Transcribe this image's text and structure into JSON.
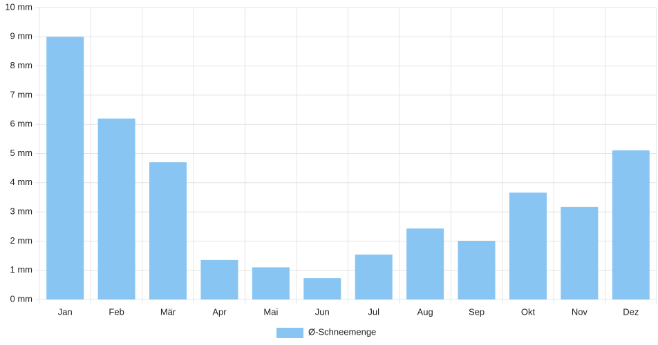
{
  "chart_data": {
    "type": "bar",
    "categories": [
      "Jan",
      "Feb",
      "Mär",
      "Apr",
      "Mai",
      "Jun",
      "Jul",
      "Aug",
      "Sep",
      "Okt",
      "Nov",
      "Dez"
    ],
    "series": [
      {
        "name": "Ø-Schneemenge",
        "color": "#88c5f2",
        "values": [
          9.0,
          6.2,
          4.7,
          1.35,
          1.1,
          0.73,
          1.54,
          2.43,
          2.01,
          3.66,
          3.17,
          5.11
        ]
      }
    ],
    "ylim": [
      0,
      10
    ],
    "yticks": [
      {
        "value": 0,
        "label": "0 mm"
      },
      {
        "value": 1,
        "label": "1 mm"
      },
      {
        "value": 2,
        "label": "2 mm"
      },
      {
        "value": 3,
        "label": "3 mm"
      },
      {
        "value": 4,
        "label": "4 mm"
      },
      {
        "value": 5,
        "label": "5 mm"
      },
      {
        "value": 6,
        "label": "6 mm"
      },
      {
        "value": 7,
        "label": "7 mm"
      },
      {
        "value": 8,
        "label": "8 mm"
      },
      {
        "value": 9,
        "label": "9 mm"
      },
      {
        "value": 10,
        "label": "10 mm"
      }
    ],
    "grid": true,
    "legend": "bottom"
  }
}
